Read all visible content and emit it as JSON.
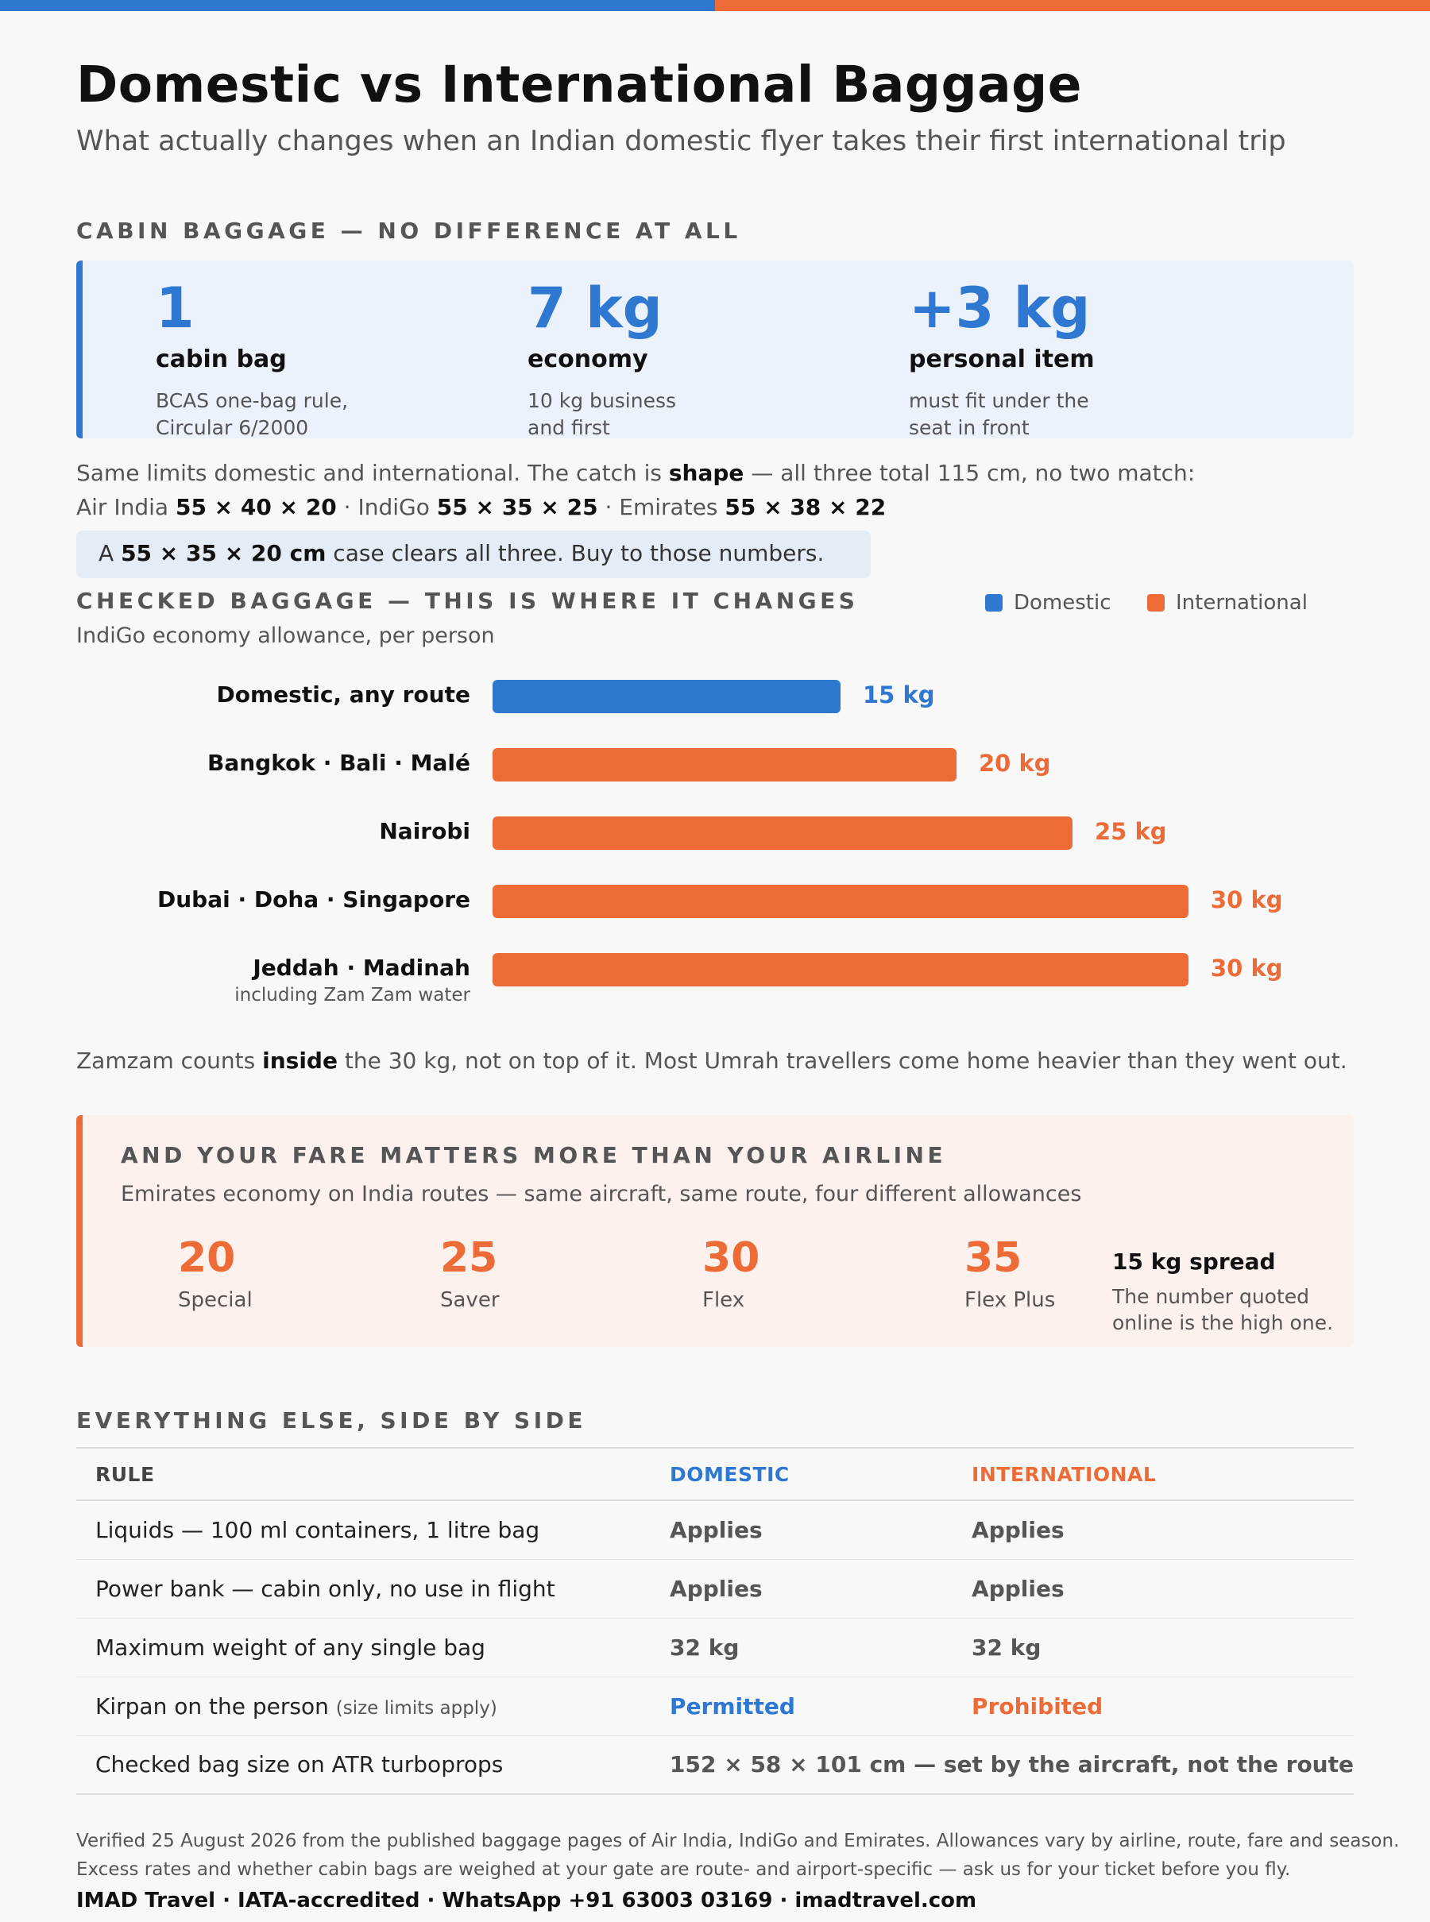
{
  "header": {
    "title": "Domestic vs International Baggage",
    "subtitle": "What actually changes when an Indian domestic flyer takes their first international trip"
  },
  "cabin": {
    "heading": "CABIN BAGGAGE — NO DIFFERENCE AT ALL",
    "stats": [
      {
        "num": "1",
        "label": "cabin bag",
        "desc1": "BCAS one-bag rule,",
        "desc2": "Circular 6/2000"
      },
      {
        "num": "7 kg",
        "label": "economy",
        "desc1": "10 kg business",
        "desc2": "and first"
      },
      {
        "num": "+3 kg",
        "label": "personal item",
        "desc1": "must fit under the",
        "desc2": "seat in front"
      }
    ],
    "note_line1_a": "Same limits domestic and international. The catch is ",
    "note_line1_b": "shape",
    "note_line1_c": " — all three total 115 cm, no two match:",
    "note_line2": [
      {
        "airline": "Air India ",
        "dims": "55 × 40 × 20"
      },
      {
        "airline": " · IndiGo ",
        "dims": "55 × 35 × 25"
      },
      {
        "airline": " · Emirates ",
        "dims": "55 × 38 × 22"
      }
    ],
    "tip_a": "A ",
    "tip_b": "55 × 35 × 20 cm",
    "tip_c": " case clears all three. Buy to those numbers."
  },
  "checked": {
    "heading": "CHECKED BAGGAGE — THIS IS WHERE IT CHANGES",
    "subheading": "IndiGo economy allowance, per person",
    "legend": [
      {
        "label": "Domestic",
        "color": "#2e78d2"
      },
      {
        "label": "International",
        "color": "#ec6b37"
      }
    ],
    "note_a": "Zamzam counts ",
    "note_b": "inside",
    "note_c": " the 30 kg, not on top of it. Most Umrah travellers come home heavier than they went out."
  },
  "chart_data": {
    "type": "bar",
    "orientation": "horizontal",
    "title": "IndiGo economy allowance, per person",
    "categories": [
      "Domestic, any route",
      "Bangkok · Bali · Malé",
      "Nairobi",
      "Dubai · Doha · Singapore",
      "Jeddah · Madinah"
    ],
    "category_notes": [
      "",
      "",
      "",
      "",
      "including Zam Zam water"
    ],
    "values": [
      15,
      20,
      25,
      30,
      30
    ],
    "value_labels": [
      "15 kg",
      "20 kg",
      "25 kg",
      "30 kg",
      "30 kg"
    ],
    "groups": [
      "Domestic",
      "International",
      "International",
      "International",
      "International"
    ],
    "xlim": [
      0,
      30
    ],
    "grid": false,
    "legend_position": "top-right"
  },
  "fare": {
    "heading": "AND YOUR FARE MATTERS MORE THAN YOUR AIRLINE",
    "subheading": "Emirates economy on India routes — same aircraft, same route, four different allowances",
    "items": [
      {
        "num": "20",
        "name": "Special"
      },
      {
        "num": "25",
        "name": "Saver"
      },
      {
        "num": "30",
        "name": "Flex"
      },
      {
        "num": "35",
        "name": "Flex Plus"
      }
    ],
    "spread_title": "15 kg spread",
    "spread_desc1": "The number quoted",
    "spread_desc2": "online is the high one."
  },
  "table": {
    "heading": "EVERYTHING ELSE, SIDE BY SIDE",
    "headers": [
      "RULE",
      "DOMESTIC",
      "INTERNATIONAL"
    ],
    "rows": [
      {
        "rule": "Liquids — 100 ml containers, 1 litre bag",
        "note": "",
        "domestic": "Applies",
        "international": "Applies"
      },
      {
        "rule": "Power bank — cabin only, no use in flight",
        "note": "",
        "domestic": "Applies",
        "international": "Applies"
      },
      {
        "rule": "Maximum weight of any single bag",
        "note": "",
        "domestic": "32 kg",
        "international": "32 kg"
      },
      {
        "rule": "Kirpan on the person ",
        "note": "(size limits apply)",
        "domestic": "Permitted",
        "international": "Prohibited"
      }
    ],
    "last_row": {
      "rule": "Checked bag size on ATR turboprops",
      "value": "152 × 58 × 101 cm — set by the aircraft, not the route"
    }
  },
  "footer": {
    "line1": "Verified 25 August 2026 from the published baggage pages of Air India, IndiGo and Emirates. Allowances vary by airline, route, fare and season.",
    "line2": "Excess rates and whether cabin bags are weighed at your gate are route- and airport-specific — ask us for your ticket before you fly.",
    "brand": "IMAD Travel · IATA-accredited · WhatsApp +91 63003 03169 · imadtravel.com"
  }
}
